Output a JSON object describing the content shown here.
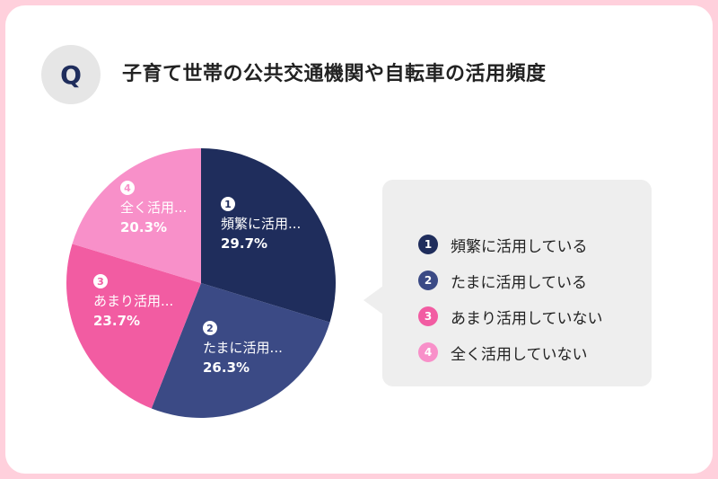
{
  "header": {
    "badge": "Q",
    "title": "子育て世帯の公共交通機関や自転車の活用頻度"
  },
  "chart_data": {
    "type": "pie",
    "title": "子育て世帯の公共交通機関や自転車の活用頻度",
    "slices": [
      {
        "num": "1",
        "name": "頻繁に活用している",
        "short_label": "頻繁に活用...",
        "value": 29.7,
        "value_label": "29.7%",
        "color": "#1f2d5c",
        "badge_text_color": "#1f2d5c"
      },
      {
        "num": "2",
        "name": "たまに活用している",
        "short_label": "たまに活用...",
        "value": 26.3,
        "value_label": "26.3%",
        "color": "#3b4a85",
        "badge_text_color": "#3b4a85"
      },
      {
        "num": "3",
        "name": "あまり活用していない",
        "short_label": "あまり活用...",
        "value": 23.7,
        "value_label": "23.7%",
        "color": "#f25ca2",
        "badge_text_color": "#f25ca2"
      },
      {
        "num": "4",
        "name": "全く活用していない",
        "short_label": "全く活用...",
        "value": 20.3,
        "value_label": "20.3%",
        "color": "#f890c9",
        "badge_text_color": "#f890c9"
      }
    ],
    "legend_placement": "right"
  }
}
